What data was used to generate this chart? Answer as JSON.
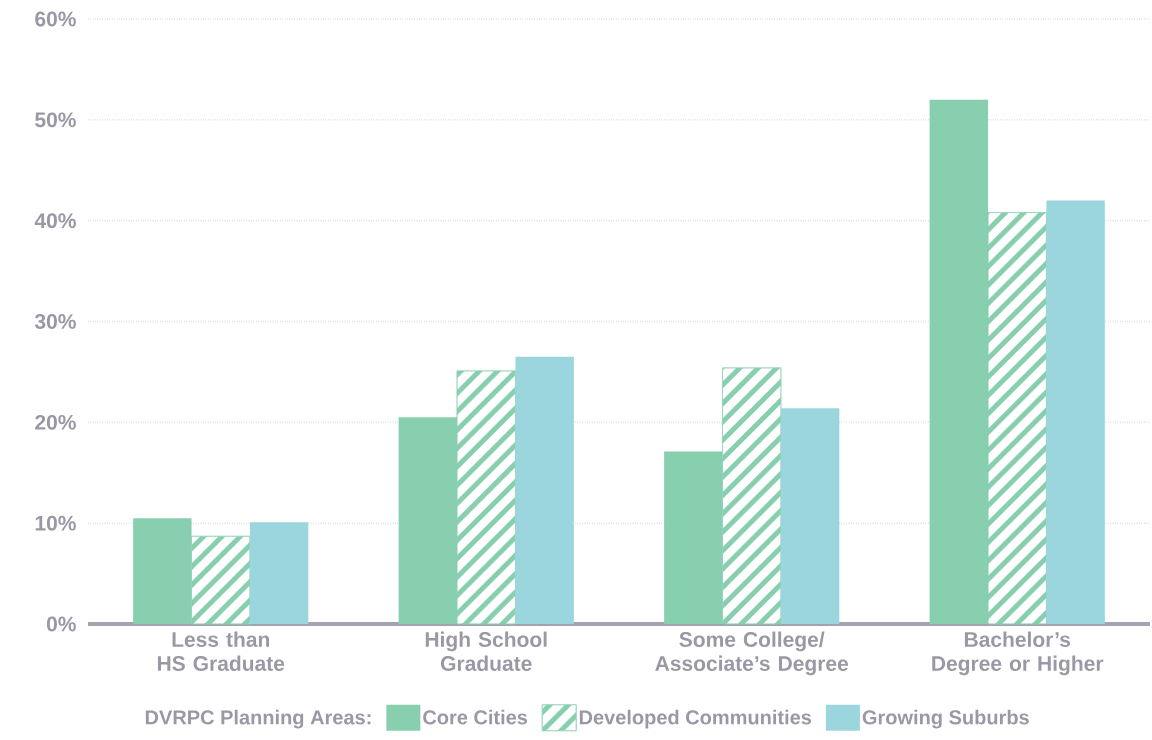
{
  "chart_data": {
    "type": "bar",
    "categories": [
      "Less than HS Graduate",
      "High School Graduate",
      "Some College/ Associate’s Degree",
      "Bachelor’s Degree or Higher"
    ],
    "series": [
      {
        "name": "Core Cities",
        "color": "#88cfb0",
        "values": [
          10.5,
          20.5,
          17.1,
          52.0
        ]
      },
      {
        "name": "Developed Communities",
        "color": "#88cfb0",
        "values": [
          8.7,
          25.1,
          25.4,
          40.8
        ]
      },
      {
        "name": "Growing Suburbs",
        "color": "#9bd6de",
        "values": [
          10.1,
          26.5,
          21.4,
          42.0
        ]
      }
    ],
    "legend_title": "DVRPC Planning Areas:",
    "legend": "bottom",
    "ylim": [
      0,
      60
    ],
    "yticks": [
      {
        "value": 0,
        "label": "0%"
      },
      {
        "value": 10,
        "label": "10%"
      },
      {
        "value": 20,
        "label": "20%"
      },
      {
        "value": 30,
        "label": "30%"
      },
      {
        "value": 40,
        "label": "40%"
      },
      {
        "value": 50,
        "label": "50%"
      },
      {
        "value": 60,
        "label": "60%"
      }
    ],
    "grid": "y"
  }
}
